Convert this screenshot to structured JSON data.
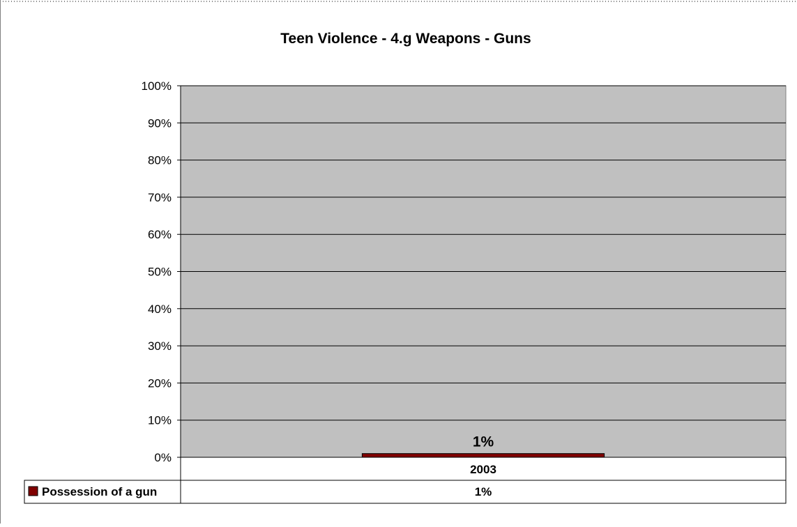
{
  "chart_data": {
    "type": "bar",
    "title": "Teen Violence - 4.g Weapons - Guns",
    "categories": [
      "2003"
    ],
    "series": [
      {
        "name": "Possession of a gun",
        "values": [
          1
        ]
      }
    ],
    "data_labels": [
      "1%"
    ],
    "y_ticks": [
      "0%",
      "10%",
      "20%",
      "30%",
      "40%",
      "50%",
      "60%",
      "70%",
      "80%",
      "90%",
      "100%"
    ],
    "ylim": [
      0,
      100
    ],
    "y_unit": "%",
    "grid": true,
    "legend_placement": "data-table-bottom",
    "data_table": {
      "rows": [
        {
          "label": "Possession of a gun",
          "values": [
            "1%"
          ]
        }
      ]
    },
    "colors": {
      "plot_background": "#c0c0c0",
      "bar": "#800000",
      "gridline": "#000000"
    }
  }
}
